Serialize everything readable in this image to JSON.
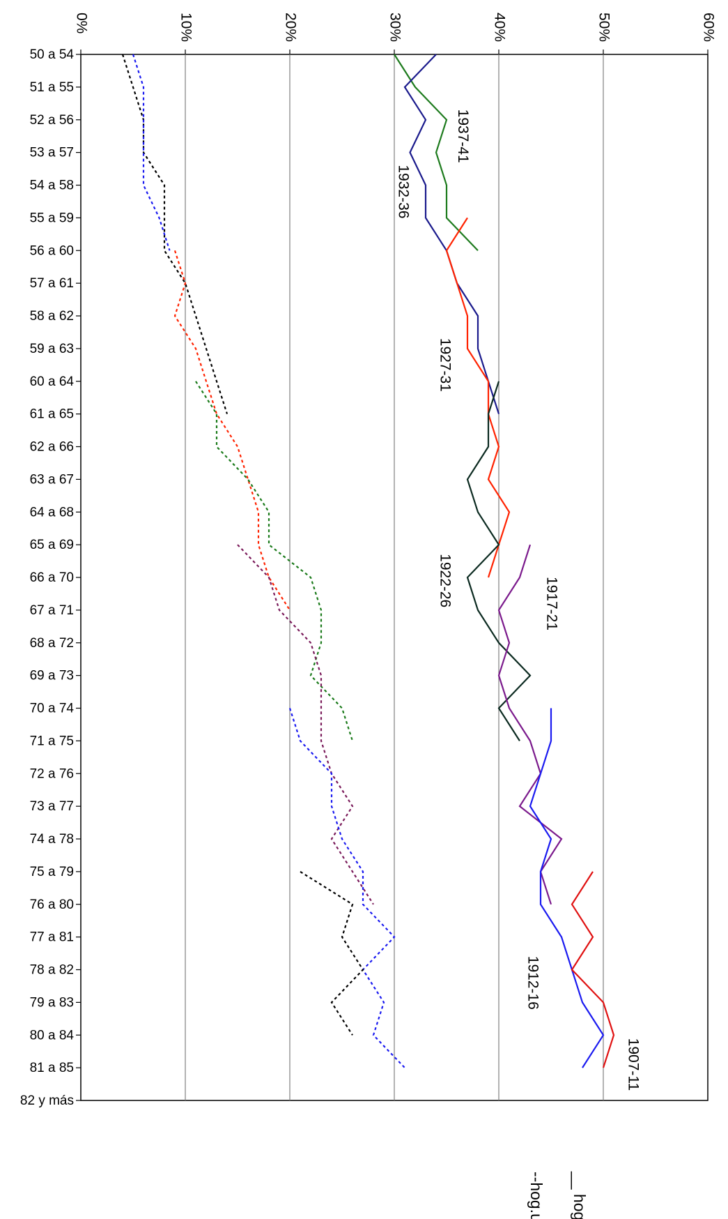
{
  "chart_data": {
    "type": "line",
    "orientation": "rotated-90-clockwise",
    "x_axis": {
      "categories": [
        "50 a 54",
        "51 a 55",
        "52 a 56",
        "53 a 57",
        "54 a 58",
        "55 a 59",
        "56 a 60",
        "57 a 61",
        "58 a 62",
        "59 a 63",
        "60 a 64",
        "61 a 65",
        "62 a 66",
        "63 a 67",
        "64 a 68",
        "65 a 69",
        "66 a 70",
        "67 a 71",
        "68 a 72",
        "69 a 73",
        "70 a 74",
        "71 a 75",
        "72 a 76",
        "73 a 77",
        "74 a 78",
        "75 a 79",
        "76 a 80",
        "77 a 81",
        "78 a 82",
        "79 a 83",
        "80 a 84",
        "81 a 85",
        "82 y más"
      ]
    },
    "y_axis": {
      "ylim": [
        0,
        60
      ],
      "ticks": [
        0,
        10,
        20,
        30,
        40,
        50,
        60
      ],
      "tick_labels": [
        "0%",
        "10%",
        "20%",
        "30%",
        "40%",
        "50%",
        "60%"
      ],
      "grid": true
    },
    "legend": {
      "placement": "bottom-right",
      "entries": [
        {
          "label": "__ hog.ext.",
          "style": "solid"
        },
        {
          "label": "--hog.uni.",
          "style": "dashed"
        }
      ]
    },
    "series": [
      {
        "name": "1937-41",
        "kind": "hog.ext.",
        "style": "solid",
        "color": "#1e7b1e",
        "start": 0,
        "values": [
          30,
          32,
          35,
          34,
          35,
          35,
          38
        ]
      },
      {
        "name": "1932-36",
        "kind": "hog.ext.",
        "style": "solid",
        "color": "#1a1a8c",
        "start": 0,
        "values": [
          34,
          31,
          33,
          31.5,
          33,
          33,
          35,
          36,
          38,
          38,
          39,
          40
        ]
      },
      {
        "name": "1927-31",
        "kind": "hog.ext.",
        "style": "solid",
        "color": "#ff2200",
        "start": 5,
        "values": [
          37,
          35,
          36,
          37,
          37,
          39,
          39,
          40,
          39,
          41,
          40,
          39
        ]
      },
      {
        "name": "1922-26",
        "kind": "hog.ext.",
        "style": "solid",
        "color": "#0b2a20",
        "start": 10,
        "values": [
          40,
          39,
          39,
          37,
          38,
          40,
          37,
          38,
          40,
          43,
          40,
          42
        ]
      },
      {
        "name": "1917-21",
        "kind": "hog.ext.",
        "style": "solid",
        "color": "#7b1a8c",
        "start": 15,
        "values": [
          43,
          42,
          40,
          41,
          40,
          41,
          43,
          44,
          42,
          46,
          44,
          45
        ]
      },
      {
        "name": "1912-16",
        "kind": "hog.ext.",
        "style": "solid",
        "color": "#1a1af0",
        "start": 20,
        "values": [
          45,
          45,
          44,
          43,
          45,
          44,
          44,
          46,
          47,
          48,
          50,
          48
        ]
      },
      {
        "name": "1907-11",
        "kind": "hog.ext.",
        "style": "solid",
        "color": "#e01010",
        "start": 25,
        "values": [
          49,
          47,
          49,
          47,
          50,
          51,
          50
        ]
      },
      {
        "kind": "hog.uni.",
        "style": "dashed",
        "color": "#000000",
        "start": 0,
        "values": [
          4,
          5,
          6,
          6,
          8,
          8,
          8,
          10,
          11,
          12,
          13,
          14
        ]
      },
      {
        "kind": "hog.uni.",
        "style": "dashed",
        "color": "#1a1af0",
        "start": 0,
        "values": [
          5,
          6,
          6,
          6,
          6,
          7.5,
          8.5
        ]
      },
      {
        "kind": "hog.uni.",
        "style": "dashed",
        "color": "#ff2200",
        "start": 6,
        "values": [
          9,
          10,
          9,
          11,
          12,
          13,
          15,
          16,
          17,
          17,
          18,
          20
        ]
      },
      {
        "kind": "hog.uni.",
        "style": "dashed",
        "color": "#1a7a1a",
        "start": 10,
        "values": [
          11,
          13,
          13,
          16,
          18,
          18,
          22,
          23,
          23,
          22,
          25,
          26
        ]
      },
      {
        "kind": "hog.uni.",
        "style": "dashed",
        "color": "#7a1a5a",
        "start": 15,
        "values": [
          15,
          18,
          19,
          22,
          23,
          23,
          23,
          24,
          26,
          24,
          26,
          28
        ]
      },
      {
        "kind": "hog.uni.",
        "style": "dashed",
        "color": "#1a1af0",
        "start": 20,
        "values": [
          20,
          21,
          24,
          24,
          25,
          27,
          27,
          30,
          27,
          29,
          28,
          31
        ]
      },
      {
        "kind": "hog.uni.",
        "style": "dashed",
        "color": "#000000",
        "start": 25,
        "values": [
          21,
          26,
          25,
          27,
          24,
          26
        ]
      }
    ],
    "series_labels": [
      {
        "series": "1937-41",
        "at": [
          2.5,
          36.5
        ]
      },
      {
        "series": "1932-36",
        "at": [
          4.2,
          30.8
        ]
      },
      {
        "series": "1927-31",
        "at": [
          9.5,
          34.8
        ]
      },
      {
        "series": "1922-26",
        "at": [
          16.1,
          34.8
        ]
      },
      {
        "series": "1917-21",
        "at": [
          16.8,
          45.0
        ]
      },
      {
        "series": "1912-16",
        "at": [
          28.4,
          43.2
        ]
      },
      {
        "series": "1907-11",
        "at": [
          30.9,
          52.8
        ]
      }
    ]
  }
}
